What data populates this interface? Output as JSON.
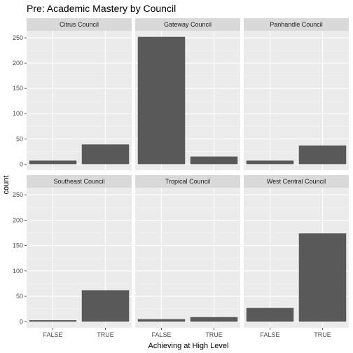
{
  "chart_data": {
    "type": "bar",
    "title": "Pre: Academic Mastery by Council",
    "xlabel": "Achieving at High Level",
    "ylabel": "count",
    "categories": [
      "FALSE",
      "TRUE"
    ],
    "yticks": [
      0,
      50,
      100,
      150,
      200,
      250
    ],
    "ylim": [
      -12,
      264
    ],
    "grid": true,
    "bar_color": "#595959",
    "panel_bg": "#ebebeb",
    "strip_bg": "#d9d9d9",
    "facets": [
      {
        "name": "Citrus Council",
        "values": [
          7,
          39
        ]
      },
      {
        "name": "Gateway Council",
        "values": [
          252,
          15
        ]
      },
      {
        "name": "Panhandle Council",
        "values": [
          7,
          37
        ]
      },
      {
        "name": "Southeast Council",
        "values": [
          3,
          62
        ]
      },
      {
        "name": "Tropical Council",
        "values": [
          5,
          9
        ]
      },
      {
        "name": "West Central Council",
        "values": [
          27,
          174
        ]
      }
    ]
  }
}
